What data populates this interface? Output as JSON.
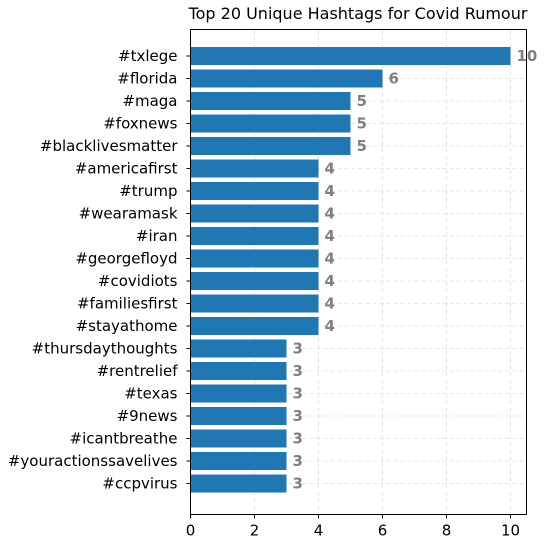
{
  "chart_data": {
    "type": "bar",
    "orientation": "horizontal",
    "title": "Top 20 Unique Hashtags for Covid Rumour",
    "xlabel": "",
    "ylabel": "",
    "categories": [
      "#txlege",
      "#florida",
      "#maga",
      "#foxnews",
      "#blacklivesmatter",
      "#americafirst",
      "#trump",
      "#wearamask",
      "#iran",
      "#georgefloyd",
      "#covidiots",
      "#familiesfirst",
      "#stayathome",
      "#thursdaythoughts",
      "#rentrelief",
      "#texas",
      "#9news",
      "#icantbreathe",
      "#youractionssavelives",
      "#ccpvirus"
    ],
    "values": [
      10,
      6,
      5,
      5,
      5,
      4,
      4,
      4,
      4,
      4,
      4,
      4,
      4,
      3,
      3,
      3,
      3,
      3,
      3,
      3
    ],
    "xlim": [
      0,
      10.5
    ],
    "xticks": [
      0,
      2,
      4,
      6,
      8,
      10
    ],
    "grid": true,
    "bar_color": "#1f77b4",
    "value_label_color": "#808080",
    "grid_color": "#dddddd"
  }
}
